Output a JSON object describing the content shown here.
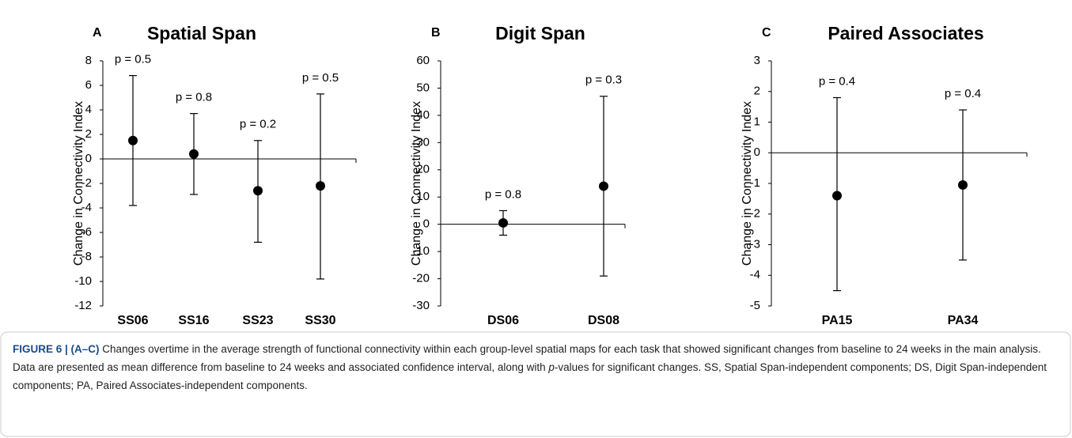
{
  "chart_data": [
    {
      "type": "errorbar",
      "letter": "A",
      "title": "Spatial Span",
      "y_label": "Change in Connectivity Index",
      "categories": [
        "SS06",
        "SS16",
        "SS23",
        "SS30"
      ],
      "values": [
        1.5,
        0.4,
        -2.6,
        -2.2
      ],
      "ci_high": [
        6.8,
        3.7,
        1.5,
        5.3
      ],
      "ci_low": [
        -3.8,
        -2.9,
        -6.8,
        -9.8
      ],
      "annotations": [
        "p = 0.5",
        "p = 0.8",
        "p = 0.2",
        "p = 0.5"
      ],
      "ylim": [
        -12,
        8
      ],
      "yticks": [
        -12,
        -10,
        -8,
        -6,
        -4,
        -2,
        0,
        2,
        4,
        6,
        8
      ],
      "color": "#000000"
    },
    {
      "type": "errorbar",
      "letter": "B",
      "title": "Digit Span",
      "y_label": "Change in Connectivity Index",
      "categories": [
        "DS06",
        "DS08"
      ],
      "values": [
        0.5,
        14
      ],
      "ci_high": [
        5,
        47
      ],
      "ci_low": [
        -4,
        -19
      ],
      "annotations": [
        "p = 0.8",
        "p = 0.3"
      ],
      "ylim": [
        -30,
        60
      ],
      "yticks": [
        -30,
        -20,
        -10,
        0,
        10,
        20,
        30,
        40,
        50,
        60
      ],
      "color": "#000000"
    },
    {
      "type": "errorbar",
      "letter": "C",
      "title": "Paired Associates",
      "y_label": "Change in Connectivity Index",
      "categories": [
        "PA15",
        "PA34"
      ],
      "values": [
        -1.4,
        -1.05
      ],
      "ci_high": [
        1.8,
        1.4
      ],
      "ci_low": [
        -4.5,
        -3.5
      ],
      "annotations": [
        "p = 0.4",
        "p = 0.4"
      ],
      "ylim": [
        -5,
        3
      ],
      "yticks": [
        -5,
        -4,
        -3,
        -2,
        -1,
        0,
        1,
        2,
        3
      ],
      "color": "#000000"
    }
  ],
  "caption": {
    "label": "FIGURE 6 | (A–C)",
    "text_before": " Changes overtime in the average strength of functional connectivity within each group-level spatial maps for each task that showed significant changes from baseline to 24 weeks in the main analysis. Data are presented as mean difference from baseline to 24 weeks and associated confidence interval, along with ",
    "italic": "p",
    "text_after": "-values for significant changes. SS, Spatial Span-independent components; DS, Digit Span-independent components; PA, Paired Associates-independent components."
  }
}
